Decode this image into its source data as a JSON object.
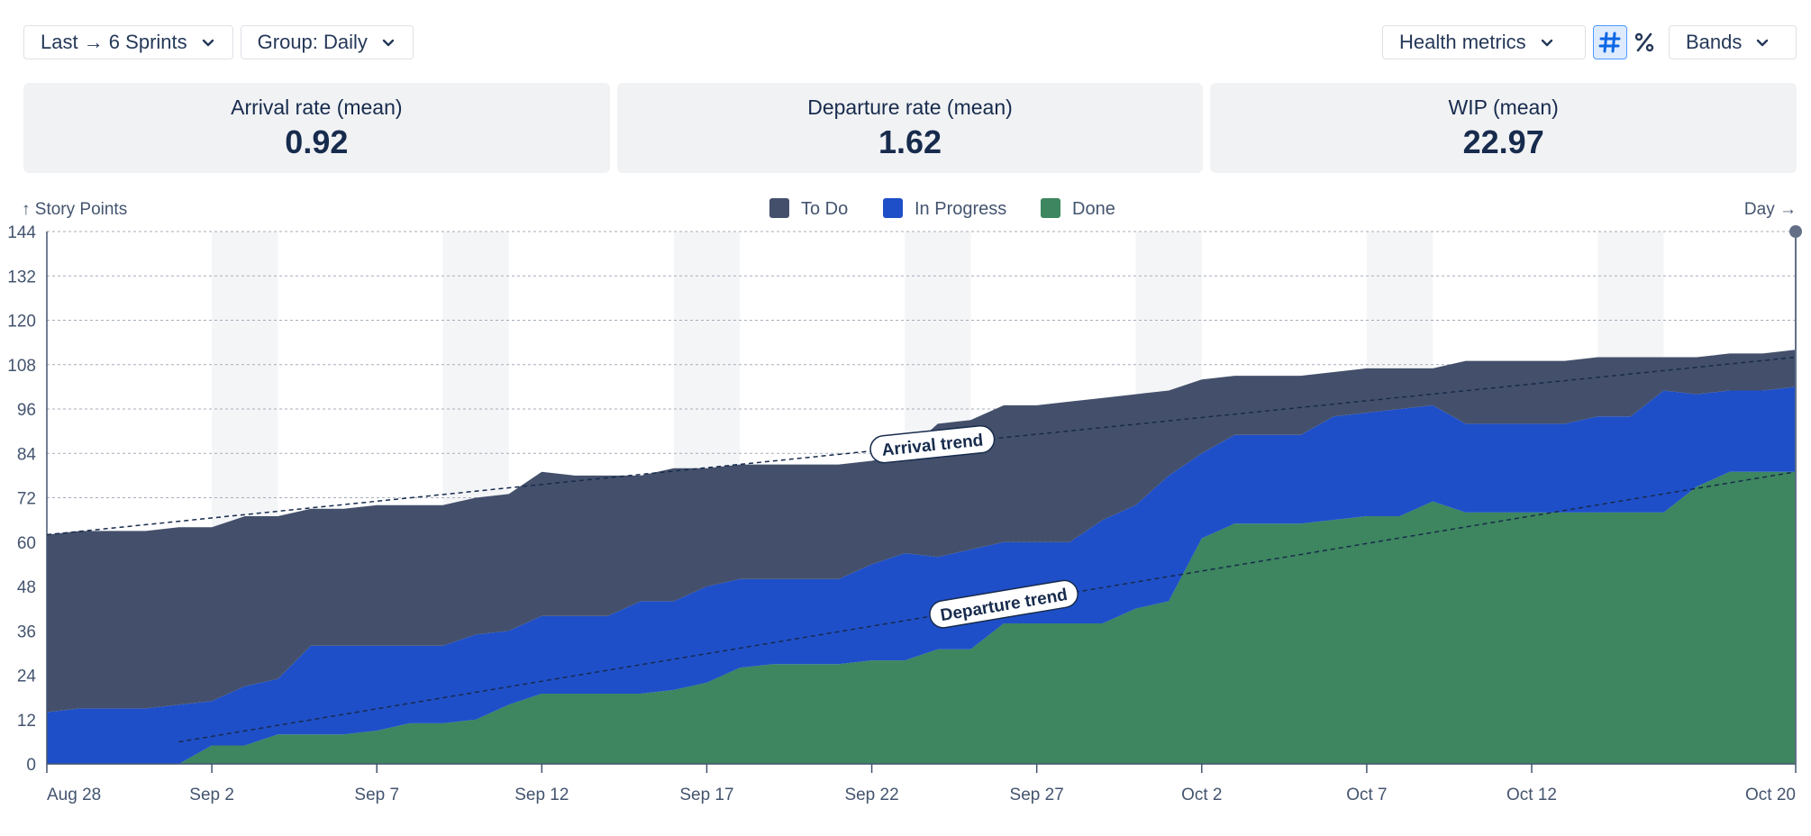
{
  "toolbar": {
    "range_label": "Last → 6 Sprints",
    "group_label": "Group: Daily",
    "metrics_label": "Health metrics",
    "count_icon": "hash-icon",
    "percent_icon": "percent-icon",
    "bands_label": "Bands"
  },
  "metrics": [
    {
      "label": "Arrival rate (mean)",
      "value": "0.92"
    },
    {
      "label": "Departure rate (mean)",
      "value": "1.62"
    },
    {
      "label": "WIP (mean)",
      "value": "22.97"
    }
  ],
  "chart_data": {
    "type": "area",
    "stacked": true,
    "ylabel": "↑ Story Points",
    "xlabel": "Day →",
    "ylim": [
      0,
      144
    ],
    "yticks": [
      0,
      12,
      24,
      36,
      48,
      60,
      72,
      84,
      96,
      108,
      120,
      132,
      144
    ],
    "x_start": "Aug 28",
    "x_end": "Oct 20",
    "xticks": [
      "Aug 28",
      "Sep 2",
      "Sep 7",
      "Sep 12",
      "Sep 17",
      "Sep 22",
      "Sep 27",
      "Oct 2",
      "Oct 7",
      "Oct 12",
      "Oct 20"
    ],
    "xtick_day_index": [
      0,
      5,
      10,
      15,
      20,
      25,
      30,
      35,
      40,
      45,
      53
    ],
    "legend": [
      "To Do",
      "In Progress",
      "Done"
    ],
    "legend_position": "top-center",
    "grid": true,
    "weekend_shading": true,
    "colors": {
      "todo": "#44506b",
      "in_progress": "#1f4fc8",
      "done": "#3d865f"
    },
    "series": [
      {
        "name": "Done",
        "values": [
          0,
          0,
          0,
          0,
          0,
          5,
          5,
          8,
          8,
          8,
          9,
          11,
          11,
          12,
          16,
          19,
          19,
          19,
          19,
          20,
          22,
          26,
          27,
          27,
          27,
          28,
          28,
          31,
          31,
          38,
          38,
          38,
          38,
          42,
          44,
          61,
          65,
          65,
          65,
          66,
          67,
          67,
          71,
          68,
          68,
          68,
          68,
          68,
          68,
          68,
          75,
          79,
          79,
          79
        ]
      },
      {
        "name": "In Progress",
        "values": [
          14,
          15,
          15,
          15,
          16,
          12,
          16,
          15,
          24,
          24,
          23,
          21,
          21,
          23,
          20,
          21,
          21,
          21,
          25,
          24,
          26,
          24,
          23,
          23,
          23,
          26,
          29,
          25,
          27,
          22,
          22,
          22,
          28,
          28,
          34,
          23,
          24,
          24,
          24,
          28,
          28,
          29,
          26,
          24,
          24,
          24,
          24,
          26,
          26,
          33,
          25,
          22,
          22,
          23
        ]
      },
      {
        "name": "To Do",
        "values": [
          48,
          48,
          48,
          48,
          48,
          47,
          46,
          44,
          37,
          37,
          38,
          38,
          38,
          37,
          37,
          39,
          38,
          38,
          34,
          36,
          32,
          31,
          31,
          31,
          31,
          28,
          27,
          36,
          35,
          37,
          37,
          38,
          33,
          30,
          23,
          20,
          16,
          16,
          16,
          12,
          12,
          11,
          10,
          17,
          17,
          17,
          17,
          16,
          16,
          9,
          10,
          10,
          10,
          10
        ]
      }
    ],
    "trend_lines": [
      {
        "label": "Arrival trend",
        "from": 62,
        "to": 110
      },
      {
        "label": "Departure trend",
        "from": 0,
        "to": 79
      }
    ],
    "cursor_day_index": 53
  }
}
